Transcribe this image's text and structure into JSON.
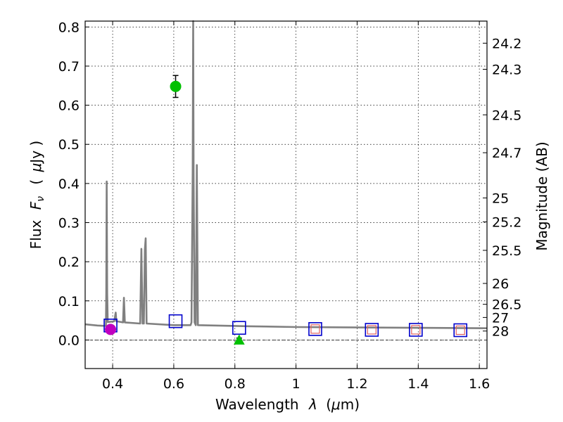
{
  "chart_data": {
    "type": "scatter",
    "xlabel_text": "Wavelength",
    "xlabel_symbol": "λ",
    "xlabel_unit_open": "(",
    "xlabel_unit_mu": "μ",
    "xlabel_unit_rest": "m)",
    "ylabel_text": "Flux",
    "ylabel_symbol_main": "F",
    "ylabel_symbol_sub": "ν",
    "ylabel_unit_open": "(",
    "ylabel_unit_mu": "μ",
    "ylabel_unit_rest": "Jy )",
    "y2label": "Magnitude (AB)",
    "xlim": [
      0.31,
      1.625
    ],
    "ylim": [
      -0.073,
      0.815
    ],
    "xticks": [
      {
        "value": 0.4,
        "label": "0.4"
      },
      {
        "value": 0.6,
        "label": "0.6"
      },
      {
        "value": 0.8,
        "label": "0.8"
      },
      {
        "value": 1.0,
        "label": "1"
      },
      {
        "value": 1.2,
        "label": "1.2"
      },
      {
        "value": 1.4,
        "label": "1.4"
      },
      {
        "value": 1.6,
        "label": "1.6"
      }
    ],
    "yticks": [
      {
        "value": 0.0,
        "label": "0.0"
      },
      {
        "value": 0.1,
        "label": "0.1"
      },
      {
        "value": 0.2,
        "label": "0.2"
      },
      {
        "value": 0.3,
        "label": "0.3"
      },
      {
        "value": 0.4,
        "label": "0.4"
      },
      {
        "value": 0.5,
        "label": "0.5"
      },
      {
        "value": 0.6,
        "label": "0.6"
      },
      {
        "value": 0.7,
        "label": "0.7"
      },
      {
        "value": 0.8,
        "label": "0.8"
      }
    ],
    "magnitude_ticks": [
      {
        "mag": 24.2,
        "label": "24.2"
      },
      {
        "mag": 24.3,
        "label": "24.3"
      },
      {
        "mag": 24.5,
        "label": "24.5"
      },
      {
        "mag": 24.7,
        "label": "24.7"
      },
      {
        "mag": 25.0,
        "label": "25"
      },
      {
        "mag": 25.2,
        "label": "25.2"
      },
      {
        "mag": 25.5,
        "label": "25.5"
      },
      {
        "mag": 26.0,
        "label": "26"
      },
      {
        "mag": 26.5,
        "label": "26.5"
      },
      {
        "mag": 27.0,
        "label": "27"
      },
      {
        "mag": 28.0,
        "label": "28"
      }
    ],
    "model_spectrum": {
      "name": "model SED",
      "color": "#808080",
      "points": [
        [
          0.31,
          0.04
        ],
        [
          0.35,
          0.037
        ],
        [
          0.378,
          0.036
        ],
        [
          0.379,
          0.12
        ],
        [
          0.3805,
          0.405
        ],
        [
          0.382,
          0.12
        ],
        [
          0.384,
          0.046
        ],
        [
          0.4,
          0.047
        ],
        [
          0.405,
          0.048
        ],
        [
          0.41,
          0.07
        ],
        [
          0.412,
          0.048
        ],
        [
          0.434,
          0.045
        ],
        [
          0.437,
          0.108
        ],
        [
          0.44,
          0.045
        ],
        [
          0.49,
          0.042
        ],
        [
          0.494,
          0.233
        ],
        [
          0.498,
          0.042
        ],
        [
          0.502,
          0.042
        ],
        [
          0.5055,
          0.232
        ],
        [
          0.508,
          0.26
        ],
        [
          0.511,
          0.042
        ],
        [
          0.6,
          0.038
        ],
        [
          0.655,
          0.038
        ],
        [
          0.658,
          0.045
        ],
        [
          0.662,
          0.43
        ],
        [
          0.6635,
          0.815
        ],
        [
          0.665,
          0.43
        ],
        [
          0.668,
          0.045
        ],
        [
          0.672,
          0.038
        ],
        [
          0.6755,
          0.447
        ],
        [
          0.679,
          0.038
        ],
        [
          0.8,
          0.036
        ],
        [
          0.85,
          0.035
        ],
        [
          1.0,
          0.033
        ],
        [
          1.2,
          0.032
        ],
        [
          1.4,
          0.031
        ],
        [
          1.625,
          0.03
        ]
      ]
    },
    "observed_points": [
      {
        "name": "observed U",
        "x": 0.393,
        "y": 0.027,
        "err": 0.008,
        "color": "#c000c0",
        "marker": "circle"
      },
      {
        "name": "observed V",
        "x": 0.606,
        "y": 0.648,
        "err": 0.028,
        "color": "#00c000",
        "marker": "circle"
      },
      {
        "name": "observed I",
        "x": 0.814,
        "y": 0.0,
        "err": 0.005,
        "color": "#00c000",
        "marker": "triangle"
      }
    ],
    "model_photometry": [
      {
        "x": 0.393,
        "y": 0.037,
        "color": "#0000cc",
        "inner": false
      },
      {
        "x": 0.606,
        "y": 0.048,
        "color": "#0000cc",
        "inner": false
      },
      {
        "x": 0.814,
        "y": 0.031,
        "color": "#0000cc",
        "inner": false
      },
      {
        "x": 1.063,
        "y": 0.028,
        "color": "#0000cc",
        "inner": true
      },
      {
        "x": 1.248,
        "y": 0.026,
        "color": "#0000cc",
        "inner": true
      },
      {
        "x": 1.392,
        "y": 0.026,
        "color": "#0000cc",
        "inner": true
      },
      {
        "x": 1.538,
        "y": 0.025,
        "color": "#0000cc",
        "inner": true
      }
    ],
    "inner_marker_color": "#e06060",
    "grid": true
  }
}
